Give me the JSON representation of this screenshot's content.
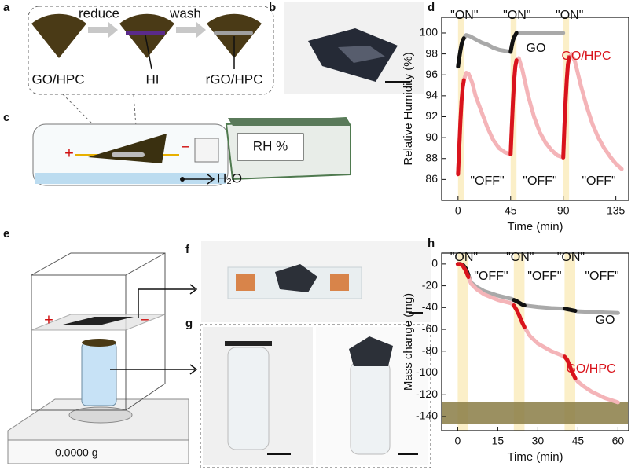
{
  "panels": {
    "a": {
      "label": "a",
      "reduce": "reduce",
      "wash": "wash",
      "start": "GO/HPC",
      "reagent": "HI",
      "product": "rGO/HPC"
    },
    "b": {
      "label": "b"
    },
    "c": {
      "label": "c",
      "sensor": "RH %",
      "water": "H₂O",
      "plus": "+",
      "minus": "−"
    },
    "e": {
      "label": "e",
      "balance": "0.0000 g",
      "plus": "+",
      "minus": "−"
    },
    "f": {
      "label": "f"
    },
    "g": {
      "label": "g"
    }
  },
  "chart_data": [
    {
      "panel": "d",
      "type": "line",
      "x_label": "Time (min)",
      "y_label": "Relative Humidity (%)",
      "xlim": [
        -14,
        146
      ],
      "ylim": [
        84,
        101.5
      ],
      "xticks": [
        0,
        45,
        90,
        135
      ],
      "yticks": [
        86,
        88,
        90,
        92,
        94,
        96,
        98,
        100
      ],
      "on_ranges": [
        [
          0,
          5
        ],
        [
          45,
          50
        ],
        [
          90,
          95
        ]
      ],
      "band_color": "#fbefc8",
      "on_labels": [
        "\"ON\"",
        "\"ON\"",
        "\"ON\""
      ],
      "off_labels": [
        "\"OFF\"",
        "\"OFF\"",
        "\"OFF\""
      ],
      "series": [
        {
          "name": "GO",
          "color": "#a9a9a9",
          "on_color": "#111111",
          "x": [
            0,
            1,
            2,
            3,
            4,
            5,
            7,
            10,
            15,
            20,
            25,
            30,
            35,
            40,
            45,
            46,
            47,
            48,
            50,
            55,
            60,
            70,
            80,
            90
          ],
          "values": [
            96.8,
            97.6,
            98.3,
            98.9,
            99.3,
            99.5,
            99.8,
            99.7,
            99.4,
            99.1,
            98.9,
            98.6,
            98.4,
            98.3,
            98.2,
            98.8,
            99.3,
            99.6,
            100,
            100,
            100,
            100,
            100,
            100
          ]
        },
        {
          "name": "GO/HPC",
          "color": "#f4b4b8",
          "on_color": "#d9141c",
          "x": [
            0,
            1,
            2,
            3,
            4,
            5,
            7,
            9,
            12,
            15,
            20,
            25,
            30,
            35,
            40,
            45,
            46,
            47,
            48,
            49,
            50,
            52,
            55,
            60,
            65,
            70,
            75,
            80,
            85,
            90,
            91,
            92,
            93,
            94,
            95,
            97,
            100,
            105,
            110,
            115,
            120,
            125,
            130,
            135,
            140
          ],
          "values": [
            86.5,
            89,
            91.5,
            93.5,
            94.8,
            95.5,
            96.2,
            96.1,
            95.3,
            94,
            92.5,
            91,
            89.8,
            89.0,
            88.6,
            88.4,
            91,
            93.5,
            95.5,
            96.8,
            97.4,
            97.6,
            96.5,
            94,
            92,
            90.5,
            89.5,
            88.8,
            88.3,
            88.1,
            91,
            93.5,
            95.5,
            97,
            97.6,
            98,
            97.3,
            95,
            93,
            91.3,
            90,
            89,
            88.2,
            87.5,
            87
          ]
        }
      ]
    },
    {
      "panel": "h",
      "type": "line",
      "x_label": "Time (min)",
      "y_label": "Mass change (mg)",
      "xlim": [
        -6,
        64
      ],
      "ylim": [
        -153,
        10
      ],
      "xticks": [
        0,
        15,
        30,
        45,
        60
      ],
      "yticks": [
        0,
        -20,
        -40,
        -60,
        -80,
        -100,
        -120,
        -140
      ],
      "on_ranges": [
        [
          0,
          4
        ],
        [
          21,
          25
        ],
        [
          40,
          44
        ]
      ],
      "band_color": "#fbefc8",
      "on_labels": [
        "\"ON\"",
        "\"ON\"",
        "\"ON\""
      ],
      "off_labels": [
        "\"OFF\"",
        "\"OFF\"",
        "\"OFF\""
      ],
      "series": [
        {
          "name": "GO",
          "color": "#a9a9a9",
          "on_color": "#111111",
          "x": [
            0,
            1,
            2,
            3,
            4,
            5,
            7,
            10,
            15,
            20,
            21,
            22,
            23,
            24,
            25,
            30,
            35,
            40,
            41,
            42,
            43,
            44,
            45,
            50,
            55,
            60
          ],
          "values": [
            0,
            0,
            -1,
            -4,
            -10,
            -17,
            -21,
            -25,
            -29,
            -32,
            -33,
            -34,
            -35.5,
            -37,
            -38,
            -39.5,
            -40.5,
            -41,
            -41.5,
            -42,
            -42.5,
            -43,
            -43.5,
            -44,
            -44.5,
            -45
          ]
        },
        {
          "name": "GO/HPC",
          "color": "#f4b4b8",
          "on_color": "#d9141c",
          "x": [
            0,
            1,
            2,
            3,
            4,
            5,
            7,
            10,
            15,
            20,
            21,
            22,
            23,
            24,
            25,
            27,
            30,
            35,
            40,
            41,
            42,
            43,
            44,
            45,
            47,
            50,
            55,
            60
          ],
          "values": [
            0,
            0,
            -2,
            -6,
            -12,
            -18,
            -23,
            -28,
            -33,
            -36,
            -38,
            -42,
            -47,
            -53,
            -58,
            -66,
            -73,
            -80,
            -85,
            -88,
            -94,
            -100,
            -105,
            -108,
            -112,
            -117,
            -123,
            -127
          ]
        }
      ]
    }
  ]
}
